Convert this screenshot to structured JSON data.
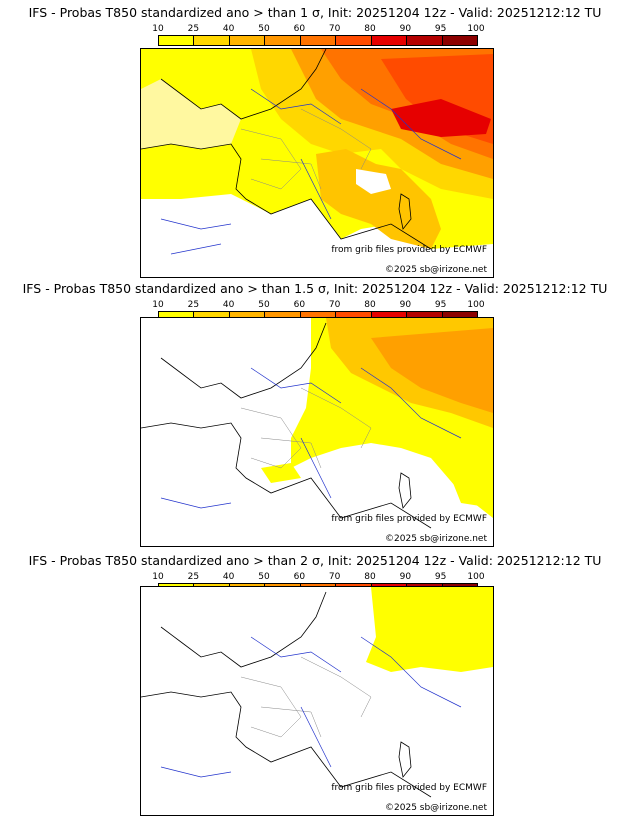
{
  "legend": {
    "ticks": [
      "10",
      "25",
      "40",
      "50",
      "60",
      "70",
      "80",
      "90",
      "95",
      "100"
    ],
    "colors": [
      "#ffff00",
      "#ffd700",
      "#ffb400",
      "#ff9600",
      "#ff7300",
      "#ff4b00",
      "#e60000",
      "#b40000",
      "#8c0000",
      "#640000"
    ]
  },
  "panels": [
    {
      "title": "IFS - Probas T850  standardized ano > than 1 σ, Init: 20251204 12z - Valid: 20251212:12 TU"
    },
    {
      "title": "IFS - Probas T850  standardized ano > than 1.5 σ, Init: 20251204 12z - Valid: 20251212:12 TU"
    },
    {
      "title": "IFS - Probas T850  standardized ano > than 2 σ, Init: 20251204 12z - Valid: 20251212:12 TU"
    }
  ],
  "credits": {
    "source": "from grib files provided by ECMWF",
    "copyright": "©2025 sb@irizone.net"
  }
}
